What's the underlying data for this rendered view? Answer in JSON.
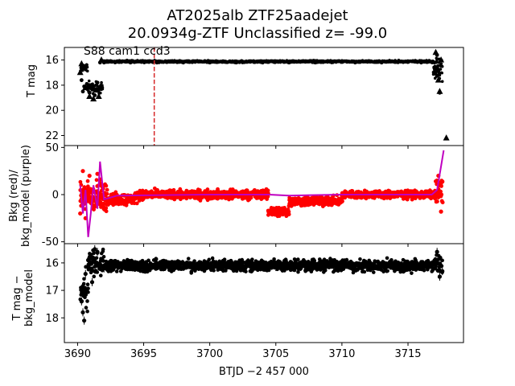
{
  "titles": {
    "line1": "AT2025alb  ZTF25aadejet",
    "line2": "20.0934g-ZTF Unclassified z= -99.0"
  },
  "annotation": "S88 cam1 ccd3",
  "chart_data": [
    {
      "type": "scatter",
      "name": "top-panel",
      "ylabel": "T mag",
      "xlim": [
        3689,
        3719.2
      ],
      "ylim": [
        22.8,
        15.0
      ],
      "y_inverted": true,
      "yticks": [
        16,
        18,
        20,
        22
      ],
      "detection_marker": "circle",
      "upper_limit_marker": "triangle",
      "detections": [
        {
          "x": 3690.3,
          "y": 17.6
        },
        {
          "x": 3690.4,
          "y": 18.5
        },
        {
          "x": 3690.5,
          "y": 18.1
        },
        {
          "x": 3690.7,
          "y": 17.9
        },
        {
          "x": 3690.9,
          "y": 18.6
        },
        {
          "x": 3691.1,
          "y": 18.0
        },
        {
          "x": 3691.3,
          "y": 18.8
        },
        {
          "x": 3691.5,
          "y": 17.8
        },
        {
          "x": 3691.7,
          "y": 16.2
        },
        {
          "x": 3692.0,
          "y": 16.2
        },
        {
          "x": 3693.0,
          "y": 16.1
        },
        {
          "x": 3694.0,
          "y": 16.2
        },
        {
          "x": 3695.0,
          "y": 16.1
        },
        {
          "x": 3696.0,
          "y": 16.2
        },
        {
          "x": 3697.0,
          "y": 16.1
        },
        {
          "x": 3698.0,
          "y": 16.2
        },
        {
          "x": 3699.0,
          "y": 16.1
        },
        {
          "x": 3700.0,
          "y": 16.2
        },
        {
          "x": 3701.0,
          "y": 16.1
        },
        {
          "x": 3702.0,
          "y": 16.2
        },
        {
          "x": 3703.0,
          "y": 16.1
        },
        {
          "x": 3704.0,
          "y": 16.2
        },
        {
          "x": 3705.0,
          "y": 16.1
        },
        {
          "x": 3706.0,
          "y": 16.2
        },
        {
          "x": 3707.0,
          "y": 16.1
        },
        {
          "x": 3708.0,
          "y": 16.2
        },
        {
          "x": 3709.0,
          "y": 16.1
        },
        {
          "x": 3710.0,
          "y": 16.1
        },
        {
          "x": 3711.0,
          "y": 16.2
        },
        {
          "x": 3712.0,
          "y": 16.1
        },
        {
          "x": 3713.0,
          "y": 16.2
        },
        {
          "x": 3714.0,
          "y": 16.1
        },
        {
          "x": 3715.0,
          "y": 16.1
        },
        {
          "x": 3716.0,
          "y": 16.2
        },
        {
          "x": 3717.0,
          "y": 16.2
        },
        {
          "x": 3717.2,
          "y": 15.6
        },
        {
          "x": 3717.3,
          "y": 17.2
        },
        {
          "x": 3717.4,
          "y": 18.6
        }
      ],
      "upper_limits": [
        {
          "x": 3690.2,
          "y": 17.0
        },
        {
          "x": 3690.3,
          "y": 16.3
        },
        {
          "x": 3690.5,
          "y": 16.6
        },
        {
          "x": 3690.6,
          "y": 18.2
        },
        {
          "x": 3690.9,
          "y": 18.9
        },
        {
          "x": 3691.2,
          "y": 19.1
        },
        {
          "x": 3691.4,
          "y": 18.4
        },
        {
          "x": 3691.6,
          "y": 18.9
        },
        {
          "x": 3691.8,
          "y": 16.0
        },
        {
          "x": 3717.1,
          "y": 15.4
        },
        {
          "x": 3717.2,
          "y": 16.6
        },
        {
          "x": 3717.3,
          "y": 17.6
        },
        {
          "x": 3717.4,
          "y": 18.5
        },
        {
          "x": 3717.5,
          "y": 16.0
        },
        {
          "x": 3717.9,
          "y": 22.2
        }
      ],
      "band_segments": [
        {
          "x_start": 3690.2,
          "x_end": 3690.7,
          "y_center": 16.6,
          "scatter": 0.5
        },
        {
          "x_start": 3690.7,
          "x_end": 3691.9,
          "y_center": 18.2,
          "scatter": 0.7
        },
        {
          "x_start": 3691.9,
          "x_end": 3716.9,
          "y_center": 16.12,
          "scatter": 0.12
        },
        {
          "x_start": 3716.9,
          "x_end": 3717.6,
          "y_center": 16.8,
          "scatter": 1.2
        }
      ],
      "vline": {
        "x": 3695.8,
        "color": "#d62728",
        "style": "dashed"
      }
    },
    {
      "type": "scatter",
      "name": "middle-panel",
      "ylabel": "Bkg (red)/ bkg_model (purple)",
      "ylabel_lines": [
        "Bkg (red)/",
        "bkg_model (purple)"
      ],
      "xlim": [
        3689,
        3719.2
      ],
      "ylim": [
        -52,
        52
      ],
      "yticks": [
        -50,
        0,
        50
      ],
      "series": [
        {
          "name": "Bkg",
          "color": "#ff0000",
          "points": [
            {
              "x": 3690.2,
              "y": -20
            },
            {
              "x": 3690.4,
              "y": 25
            },
            {
              "x": 3690.6,
              "y": -25
            },
            {
              "x": 3690.9,
              "y": 20
            },
            {
              "x": 3691.2,
              "y": -15
            },
            {
              "x": 3691.5,
              "y": 22
            },
            {
              "x": 3691.8,
              "y": -12
            },
            {
              "x": 3692.2,
              "y": -10
            },
            {
              "x": 3693.0,
              "y": -3
            },
            {
              "x": 3695.0,
              "y": 0
            },
            {
              "x": 3700.0,
              "y": 0
            },
            {
              "x": 3704.3,
              "y": 0
            },
            {
              "x": 3704.6,
              "y": -20
            },
            {
              "x": 3706.0,
              "y": -12
            },
            {
              "x": 3708.0,
              "y": -6
            },
            {
              "x": 3710.0,
              "y": -1
            },
            {
              "x": 3713.0,
              "y": 0
            },
            {
              "x": 3716.0,
              "y": 0
            },
            {
              "x": 3717.0,
              "y": 0
            },
            {
              "x": 3717.3,
              "y": 20
            },
            {
              "x": 3717.5,
              "y": -18
            }
          ],
          "band_segments": [
            {
              "x_start": 3690.2,
              "x_end": 3692.2,
              "y_center": -2,
              "scatter": 24
            },
            {
              "x_start": 3692.2,
              "x_end": 3694.5,
              "y_center": -5,
              "scatter": 9
            },
            {
              "x_start": 3694.5,
              "x_end": 3704.4,
              "y_center": 0,
              "scatter": 7
            },
            {
              "x_start": 3704.4,
              "x_end": 3706.0,
              "y_center": -18,
              "scatter": 8
            },
            {
              "x_start": 3706.0,
              "x_end": 3710.0,
              "y_center": -7,
              "scatter": 7
            },
            {
              "x_start": 3710.0,
              "x_end": 3717.0,
              "y_center": 0,
              "scatter": 6
            },
            {
              "x_start": 3717.0,
              "x_end": 3717.6,
              "y_center": 2,
              "scatter": 20
            }
          ]
        },
        {
          "name": "bkg_model",
          "color": "#c000c0",
          "points": [
            {
              "x": 3690.2,
              "y": 10
            },
            {
              "x": 3690.4,
              "y": -20
            },
            {
              "x": 3690.6,
              "y": 5
            },
            {
              "x": 3690.8,
              "y": -45
            },
            {
              "x": 3691.0,
              "y": -20
            },
            {
              "x": 3691.2,
              "y": 10
            },
            {
              "x": 3691.5,
              "y": -15
            },
            {
              "x": 3691.7,
              "y": 35
            },
            {
              "x": 3692.0,
              "y": -5
            },
            {
              "x": 3693.0,
              "y": -1
            },
            {
              "x": 3700.0,
              "y": 0
            },
            {
              "x": 3704.5,
              "y": 0
            },
            {
              "x": 3706.0,
              "y": -1
            },
            {
              "x": 3710.0,
              "y": 0
            },
            {
              "x": 3716.8,
              "y": 0
            },
            {
              "x": 3717.2,
              "y": 5
            },
            {
              "x": 3717.5,
              "y": 30
            },
            {
              "x": 3717.7,
              "y": 47
            }
          ]
        }
      ]
    },
    {
      "type": "scatter",
      "name": "bottom-panel",
      "ylabel": "T mag − bkg_model",
      "ylabel_lines": [
        "T mag −",
        "bkg_model"
      ],
      "xlabel": "BTJD −2 457 000",
      "xlim": [
        3689,
        3719.2
      ],
      "ylim": [
        18.9,
        15.3
      ],
      "y_inverted": true,
      "yticks": [
        16,
        17,
        18
      ],
      "xticks": [
        3690,
        3695,
        3700,
        3705,
        3710,
        3715
      ],
      "points": [
        {
          "x": 3690.3,
          "y": 17.4
        },
        {
          "x": 3690.4,
          "y": 17.8
        },
        {
          "x": 3690.5,
          "y": 18.1
        },
        {
          "x": 3690.6,
          "y": 16.4
        },
        {
          "x": 3690.8,
          "y": 15.9
        },
        {
          "x": 3691.1,
          "y": 16.7
        },
        {
          "x": 3691.3,
          "y": 15.5
        },
        {
          "x": 3691.5,
          "y": 15.6
        },
        {
          "x": 3692.0,
          "y": 16.2
        },
        {
          "x": 3695.0,
          "y": 16.1
        },
        {
          "x": 3700.0,
          "y": 16.1
        },
        {
          "x": 3705.0,
          "y": 16.15
        },
        {
          "x": 3710.0,
          "y": 16.1
        },
        {
          "x": 3715.0,
          "y": 16.1
        },
        {
          "x": 3717.2,
          "y": 15.6
        },
        {
          "x": 3717.4,
          "y": 16.5
        },
        {
          "x": 3717.6,
          "y": 16.3
        }
      ],
      "band_segments": [
        {
          "x_start": 3690.2,
          "x_end": 3690.8,
          "y_center": 17.0,
          "scatter": 0.9
        },
        {
          "x_start": 3690.8,
          "x_end": 3692.0,
          "y_center": 16.0,
          "scatter": 0.6
        },
        {
          "x_start": 3692.0,
          "x_end": 3717.0,
          "y_center": 16.1,
          "scatter": 0.3
        },
        {
          "x_start": 3717.0,
          "x_end": 3717.6,
          "y_center": 16.1,
          "scatter": 0.5
        }
      ]
    }
  ]
}
